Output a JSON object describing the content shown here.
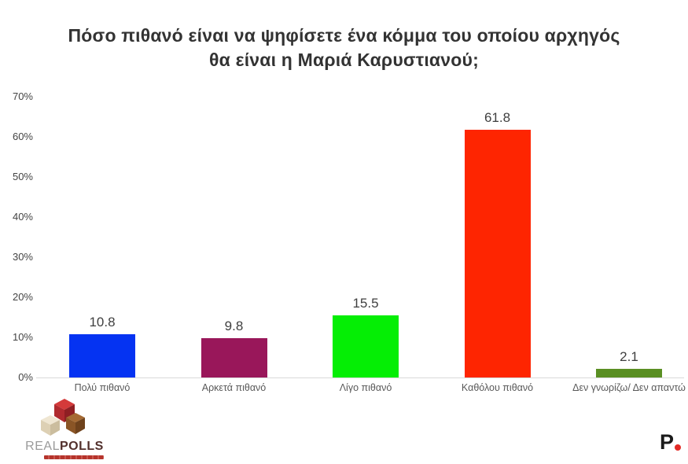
{
  "title": {
    "line1": "Πόσο πιθανό είναι να ψηφίσετε ένα κόμμα του οποίου αρχηγός",
    "line2": "θα είναι η Μαριά Καρυστιανού;"
  },
  "chart_data": {
    "type": "bar",
    "title": "Πόσο πιθανό είναι να ψηφίσετε ένα κόμμα του οποίου αρχηγός θα είναι η Μαριά Καρυστιανού;",
    "categories": [
      "Πολύ πιθανό",
      "Αρκετά πιθανό",
      "Λίγο πιθανό",
      "Καθόλου πιθανό",
      "Δεν γνωρίζω/ Δεν απαντώ"
    ],
    "values": [
      10.8,
      9.8,
      15.5,
      61.8,
      2.1
    ],
    "value_labels": [
      "10.8",
      "9.8",
      "15.5",
      "61.8",
      "2.1"
    ],
    "bar_colors": [
      "#0533f2",
      "#99175a",
      "#05ee05",
      "#fe2501",
      "#5a8f23"
    ],
    "xlabel": "",
    "ylabel": "",
    "ylim": [
      0,
      70
    ],
    "yticks": [
      "0%",
      "10%",
      "20%",
      "30%",
      "40%",
      "50%",
      "60%",
      "70%"
    ],
    "grid": false,
    "legend_position": "none"
  },
  "colors": {
    "axis_line": "#d9d9d9",
    "title_text": "#333333",
    "value_label": "#3f3f3f",
    "tick_label": "#444444",
    "category_label": "#595959",
    "realpolls_red": "#b5342c",
    "protothema_dot": "#e22b26"
  },
  "footer": {
    "realpolls": {
      "real": "REAL",
      "polls": "POLLS"
    },
    "protothema": {
      "letter": "P"
    }
  }
}
